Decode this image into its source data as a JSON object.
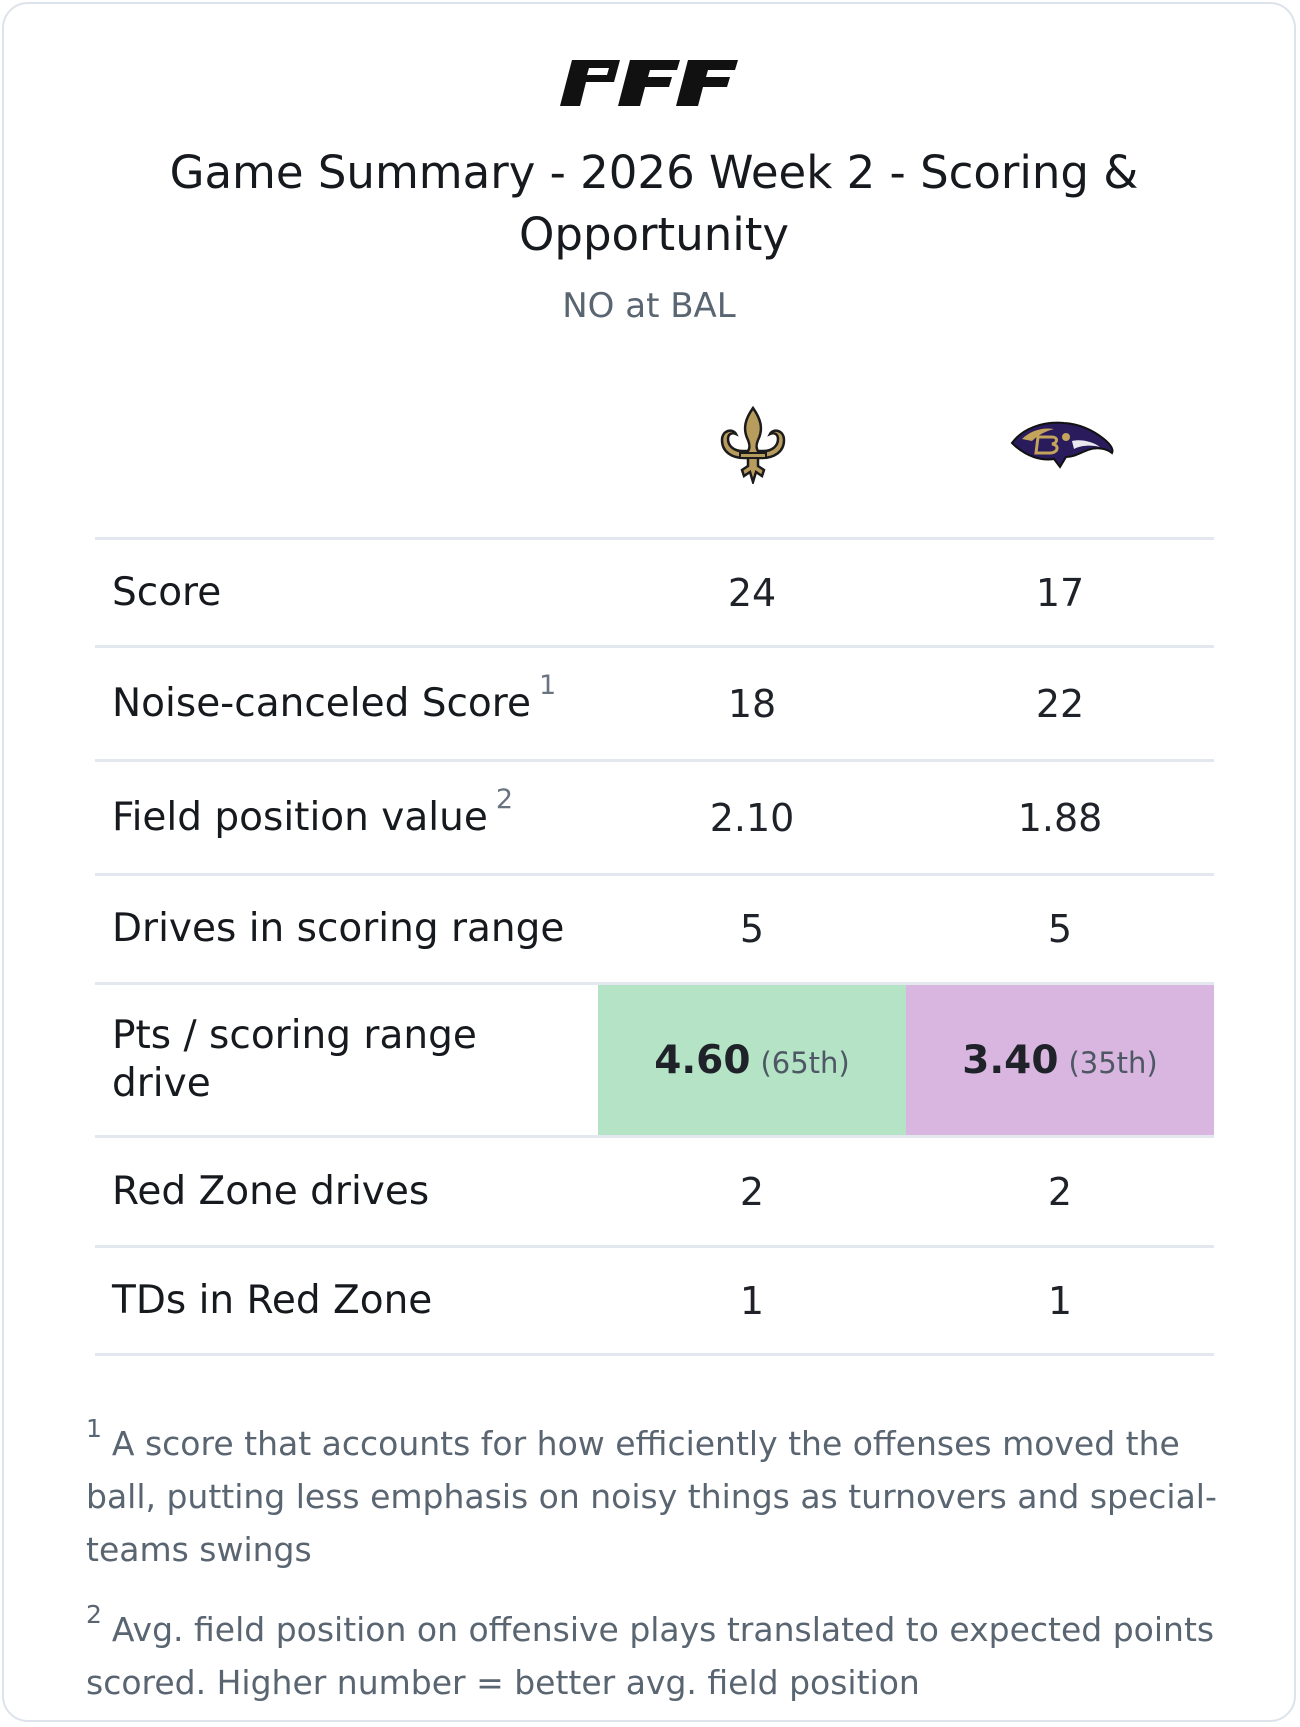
{
  "header": {
    "logo_text": "PFF",
    "title": "Game Summary - 2026 Week 2 - Scoring & Opportunity",
    "subtitle": "NO at BAL"
  },
  "teams": [
    {
      "abbr": "NO",
      "logo_icon": "saints-fleur-de-lis-icon"
    },
    {
      "abbr": "BAL",
      "logo_icon": "ravens-head-icon"
    }
  ],
  "colors": {
    "positive_highlight": "#b4e3c6",
    "negative_highlight": "#d9b6e0",
    "divider": "#e3e8ee"
  },
  "rows": [
    {
      "label": "Score",
      "note": "",
      "no": "24",
      "bal": "17"
    },
    {
      "label": "Noise-canceled Score",
      "note": "1",
      "no": "18",
      "bal": "22"
    },
    {
      "label": "Field position value",
      "note": "2",
      "no": "2.10",
      "bal": "1.88"
    },
    {
      "label": "Drives in scoring range",
      "note": "",
      "no": "5",
      "bal": "5"
    },
    {
      "label": "Pts / scoring range drive",
      "note": "",
      "no": "4.60",
      "no_pct": "(65th)",
      "bal": "3.40",
      "bal_pct": "(35th)"
    },
    {
      "label": "Red Zone drives",
      "note": "",
      "no": "2",
      "bal": "2"
    },
    {
      "label": "TDs in Red Zone",
      "note": "",
      "no": "1",
      "bal": "1"
    }
  ],
  "footnotes": [
    {
      "mark": "1",
      "text": "A score that accounts for how efficiently the offenses moved the ball, putting less emphasis on noisy things as turnovers and special-teams swings"
    },
    {
      "mark": "2",
      "text": "Avg. field position on offensive plays translated to expected points scored. Higher number = better avg. field position"
    }
  ]
}
